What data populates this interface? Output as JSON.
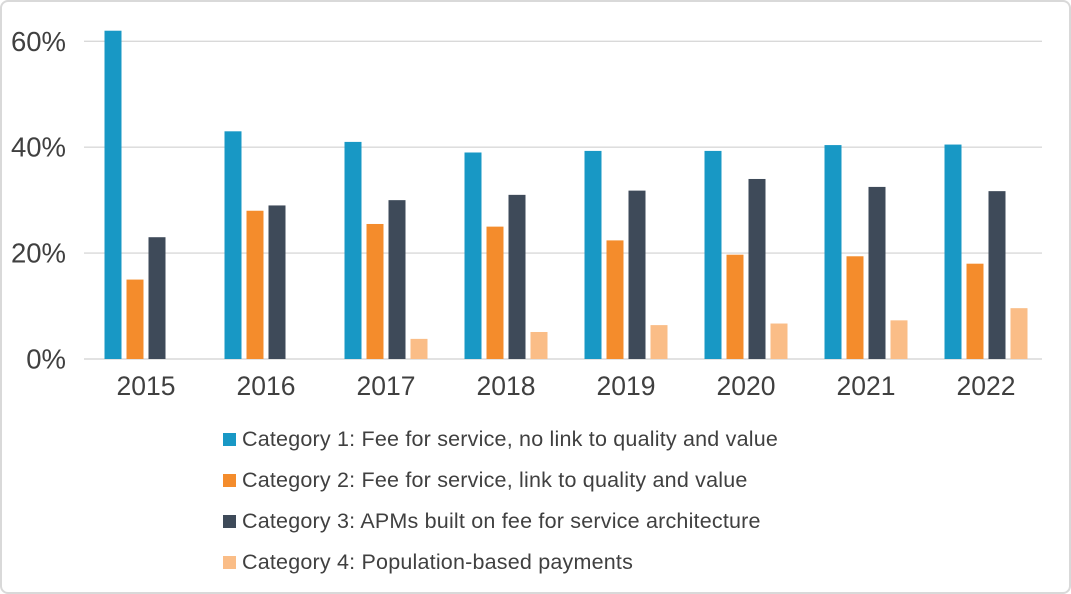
{
  "frame": {
    "background": "#ffffff",
    "border_color": "#d9d9d9"
  },
  "chart_data": {
    "type": "bar",
    "title": "",
    "xlabel": "",
    "ylabel": "",
    "categories": [
      "2015",
      "2016",
      "2017",
      "2018",
      "2019",
      "2020",
      "2021",
      "2022"
    ],
    "series": [
      {
        "name": "Category 1: Fee for service, no link to quality and value",
        "color": "#1898C5",
        "values": [
          62,
          43,
          41,
          39,
          39.3,
          39.3,
          40.4,
          40.5
        ]
      },
      {
        "name": "Category 2: Fee for service, link to quality and value",
        "color": "#F48C2C",
        "values": [
          15,
          28,
          25.5,
          25,
          22.4,
          19.7,
          19.4,
          18
        ]
      },
      {
        "name": "Category 3: APMs built on fee for service architecture",
        "color": "#3E4A59",
        "values": [
          23,
          29,
          30,
          31,
          31.8,
          34,
          32.5,
          31.7
        ]
      },
      {
        "name": "Category 4: Population-based payments",
        "color": "#FABD87",
        "values": [
          0,
          0,
          3.8,
          5.1,
          6.4,
          6.7,
          7.3,
          9.6
        ]
      }
    ],
    "y_ticks": [
      {
        "label": "0%",
        "value": 0
      },
      {
        "label": "20%",
        "value": 20
      },
      {
        "label": "40%",
        "value": 40
      },
      {
        "label": "60%",
        "value": 60
      }
    ],
    "ylim": [
      0,
      64
    ],
    "grid": "on",
    "legend_position": "bottom",
    "axis_text_color": "#404040",
    "grid_color": "#D9D9D9"
  }
}
